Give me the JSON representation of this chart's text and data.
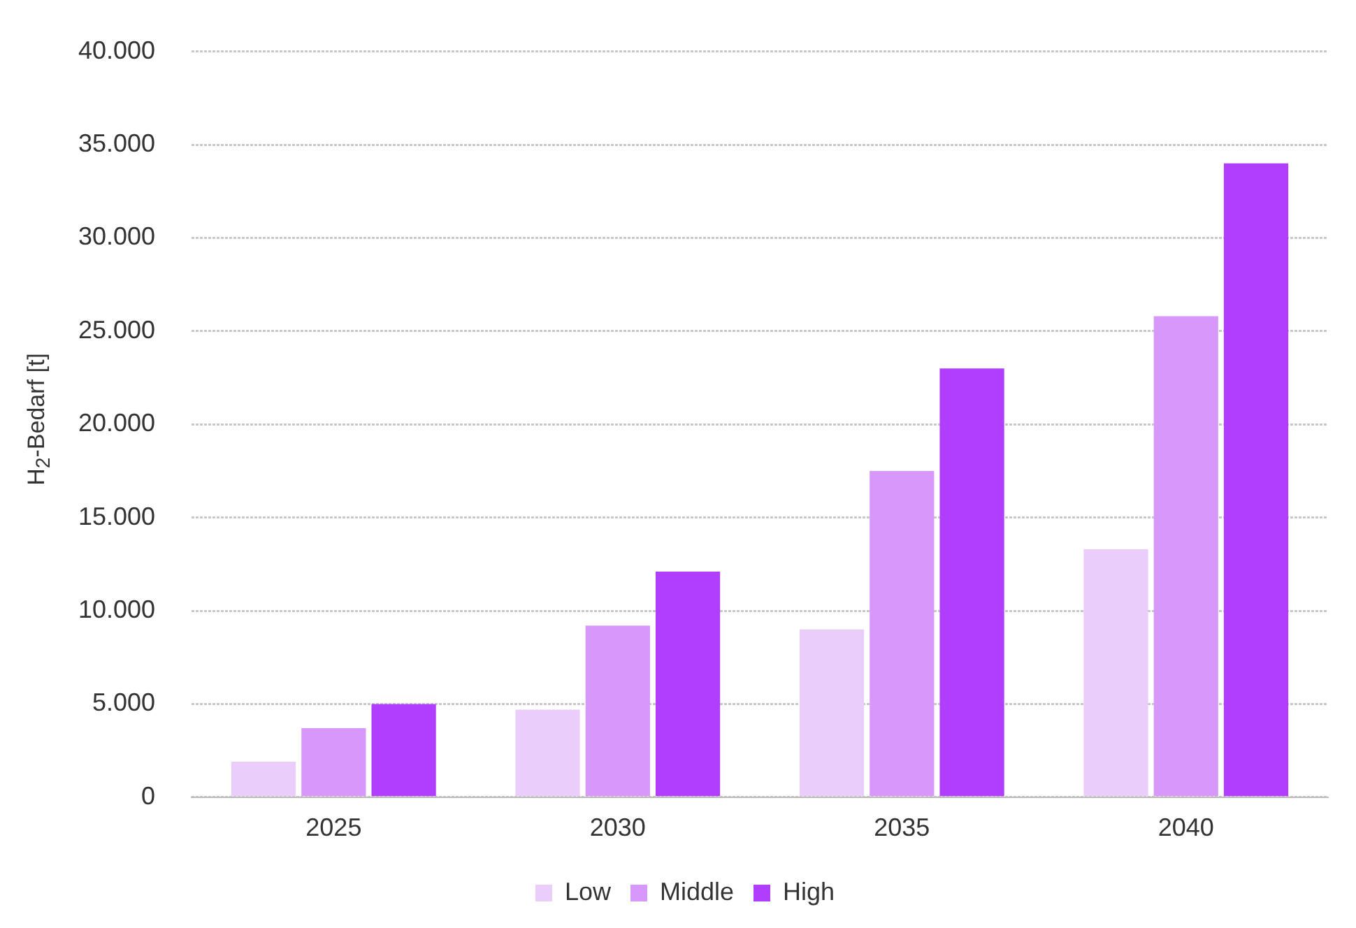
{
  "chart_data": {
    "type": "bar",
    "ylabel": "H$_{2}$-Bedarf [t]",
    "categories": [
      "2025",
      "2030",
      "2035",
      "2040"
    ],
    "series": [
      {
        "name": "Low",
        "color": "#ebcdfc",
        "values": [
          1900,
          4700,
          9000,
          13300
        ]
      },
      {
        "name": "Middle",
        "color": "#d898fb",
        "values": [
          3700,
          9200,
          17500,
          25800
        ]
      },
      {
        "name": "High",
        "color": "#b23efd",
        "values": [
          5000,
          12100,
          23000,
          34000
        ]
      }
    ],
    "ylim": [
      0,
      40000
    ],
    "yticks": [
      {
        "value": 0,
        "label": "0"
      },
      {
        "value": 5000,
        "label": "5.000"
      },
      {
        "value": 10000,
        "label": "10.000"
      },
      {
        "value": 15000,
        "label": "15.000"
      },
      {
        "value": 20000,
        "label": "20.000"
      },
      {
        "value": 25000,
        "label": "25.000"
      },
      {
        "value": 30000,
        "label": "30.000"
      },
      {
        "value": 35000,
        "label": "35.000"
      },
      {
        "value": 40000,
        "label": "40.000"
      }
    ],
    "grid": "y",
    "legend": "bottom"
  }
}
